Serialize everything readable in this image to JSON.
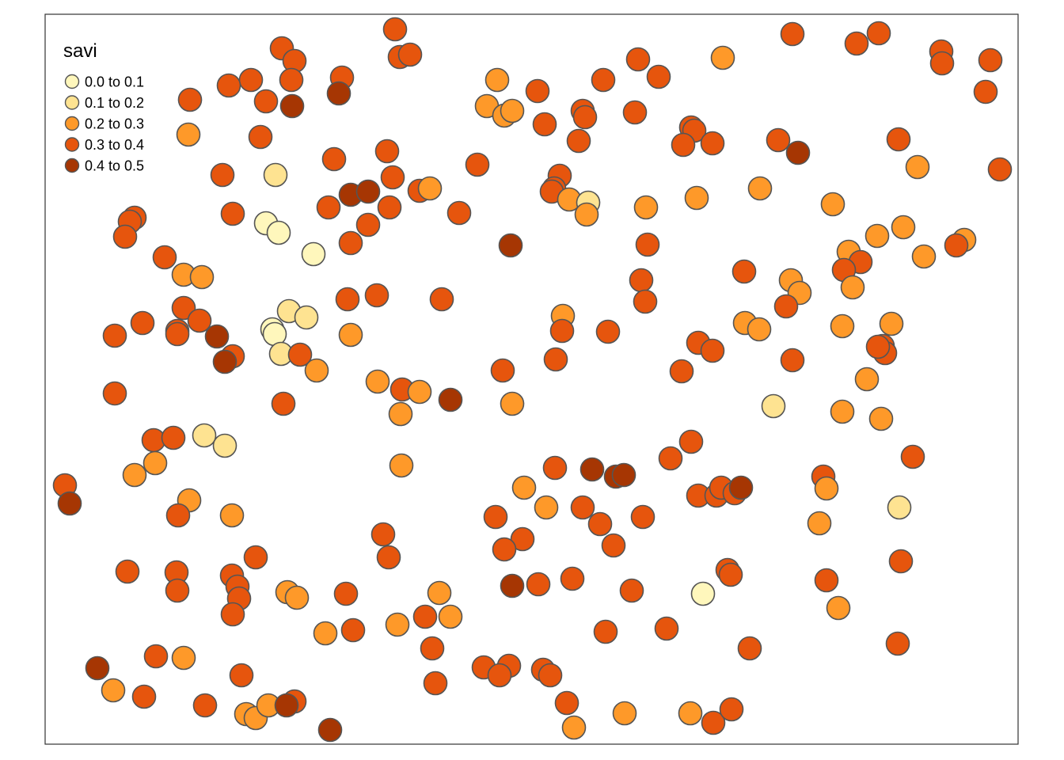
{
  "legend": {
    "title": "savi",
    "classes": [
      {
        "label": "0.0 to 0.1",
        "color": "#FFF7BC"
      },
      {
        "label": "0.1 to 0.2",
        "color": "#FEE391"
      },
      {
        "label": "0.2 to 0.3",
        "color": "#FE9929"
      },
      {
        "label": "0.3 to 0.4",
        "color": "#E6550D"
      },
      {
        "label": "0.4 to 0.5",
        "color": "#A63603"
      }
    ]
  },
  "style": {
    "point_outline": "#555555",
    "frame": "#333333"
  },
  "points": [
    [
      499,
      37,
      3
    ],
    [
      505,
      72,
      3
    ],
    [
      518,
      69,
      3
    ],
    [
      356,
      61,
      3
    ],
    [
      372,
      77,
      3
    ],
    [
      368,
      101,
      3
    ],
    [
      432,
      98,
      3
    ],
    [
      428,
      118,
      4
    ],
    [
      369,
      134,
      4
    ],
    [
      336,
      128,
      3
    ],
    [
      317,
      101,
      3
    ],
    [
      289,
      108,
      3
    ],
    [
      240,
      126,
      3
    ],
    [
      238,
      170,
      2
    ],
    [
      329,
      173,
      3
    ],
    [
      281,
      221,
      3
    ],
    [
      348,
      221,
      1
    ],
    [
      294,
      270,
      3
    ],
    [
      336,
      282,
      0
    ],
    [
      352,
      294,
      0
    ],
    [
      396,
      321,
      0
    ],
    [
      422,
      201,
      3
    ],
    [
      489,
      191,
      3
    ],
    [
      496,
      224,
      3
    ],
    [
      443,
      246,
      4
    ],
    [
      465,
      242,
      4
    ],
    [
      415,
      262,
      3
    ],
    [
      492,
      262,
      3
    ],
    [
      465,
      284,
      3
    ],
    [
      443,
      307,
      3
    ],
    [
      530,
      241,
      3
    ],
    [
      543,
      238,
      2
    ],
    [
      580,
      269,
      3
    ],
    [
      603,
      208,
      3
    ],
    [
      645,
      310,
      4
    ],
    [
      170,
      275,
      3
    ],
    [
      164,
      280,
      3
    ],
    [
      158,
      299,
      3
    ],
    [
      208,
      325,
      3
    ],
    [
      232,
      347,
      2
    ],
    [
      255,
      350,
      2
    ],
    [
      232,
      389,
      3
    ],
    [
      252,
      405,
      3
    ],
    [
      224,
      418,
      3
    ],
    [
      224,
      422,
      3
    ],
    [
      274,
      425,
      4
    ],
    [
      294,
      450,
      3
    ],
    [
      284,
      457,
      4
    ],
    [
      145,
      424,
      3
    ],
    [
      180,
      408,
      3
    ],
    [
      145,
      497,
      3
    ],
    [
      365,
      393,
      1
    ],
    [
      387,
      401,
      1
    ],
    [
      344,
      416,
      0
    ],
    [
      347,
      422,
      0
    ],
    [
      355,
      447,
      1
    ],
    [
      379,
      448,
      3
    ],
    [
      400,
      468,
      2
    ],
    [
      439,
      378,
      3
    ],
    [
      476,
      373,
      3
    ],
    [
      443,
      423,
      2
    ],
    [
      558,
      378,
      3
    ],
    [
      477,
      482,
      2
    ],
    [
      508,
      492,
      3
    ],
    [
      530,
      495,
      2
    ],
    [
      569,
      505,
      4
    ],
    [
      506,
      523,
      2
    ],
    [
      358,
      510,
      3
    ],
    [
      194,
      556,
      3
    ],
    [
      219,
      553,
      3
    ],
    [
      258,
      550,
      1
    ],
    [
      284,
      563,
      1
    ],
    [
      196,
      585,
      2
    ],
    [
      170,
      600,
      2
    ],
    [
      82,
      613,
      3
    ],
    [
      88,
      636,
      4
    ],
    [
      239,
      632,
      2
    ],
    [
      225,
      651,
      3
    ],
    [
      293,
      651,
      2
    ],
    [
      507,
      588,
      2
    ],
    [
      484,
      675,
      3
    ],
    [
      491,
      704,
      3
    ],
    [
      323,
      704,
      3
    ],
    [
      161,
      722,
      3
    ],
    [
      223,
      723,
      3
    ],
    [
      224,
      746,
      3
    ],
    [
      293,
      727,
      3
    ],
    [
      300,
      741,
      3
    ],
    [
      302,
      756,
      3
    ],
    [
      294,
      776,
      3
    ],
    [
      363,
      748,
      2
    ],
    [
      375,
      755,
      2
    ],
    [
      437,
      750,
      3
    ],
    [
      555,
      749,
      2
    ],
    [
      537,
      779,
      3
    ],
    [
      569,
      779,
      2
    ],
    [
      502,
      789,
      2
    ],
    [
      446,
      796,
      3
    ],
    [
      411,
      800,
      2
    ],
    [
      546,
      819,
      3
    ],
    [
      550,
      863,
      3
    ],
    [
      197,
      829,
      3
    ],
    [
      232,
      831,
      2
    ],
    [
      123,
      844,
      4
    ],
    [
      143,
      872,
      2
    ],
    [
      182,
      880,
      3
    ],
    [
      259,
      891,
      3
    ],
    [
      305,
      853,
      3
    ],
    [
      311,
      902,
      2
    ],
    [
      323,
      907,
      2
    ],
    [
      339,
      891,
      2
    ],
    [
      372,
      886,
      3
    ],
    [
      362,
      891,
      4
    ],
    [
      417,
      922,
      4
    ],
    [
      628,
      101,
      2
    ],
    [
      679,
      115,
      3
    ],
    [
      615,
      134,
      2
    ],
    [
      637,
      146,
      2
    ],
    [
      647,
      140,
      2
    ],
    [
      688,
      157,
      3
    ],
    [
      736,
      140,
      3
    ],
    [
      739,
      148,
      3
    ],
    [
      731,
      178,
      3
    ],
    [
      762,
      101,
      3
    ],
    [
      806,
      75,
      3
    ],
    [
      832,
      97,
      3
    ],
    [
      802,
      142,
      3
    ],
    [
      707,
      222,
      3
    ],
    [
      700,
      238,
      3
    ],
    [
      697,
      242,
      3
    ],
    [
      719,
      252,
      2
    ],
    [
      743,
      256,
      1
    ],
    [
      741,
      271,
      2
    ],
    [
      816,
      262,
      2
    ],
    [
      818,
      309,
      3
    ],
    [
      810,
      354,
      3
    ],
    [
      815,
      381,
      3
    ],
    [
      711,
      399,
      2
    ],
    [
      710,
      418,
      3
    ],
    [
      702,
      454,
      3
    ],
    [
      768,
      419,
      3
    ],
    [
      635,
      468,
      3
    ],
    [
      647,
      510,
      2
    ],
    [
      873,
      161,
      3
    ],
    [
      877,
      165,
      3
    ],
    [
      863,
      183,
      3
    ],
    [
      900,
      181,
      3
    ],
    [
      913,
      73,
      2
    ],
    [
      880,
      250,
      2
    ],
    [
      983,
      177,
      3
    ],
    [
      1008,
      193,
      4
    ],
    [
      960,
      238,
      2
    ],
    [
      1001,
      43,
      3
    ],
    [
      1082,
      55,
      3
    ],
    [
      1110,
      42,
      3
    ],
    [
      1189,
      65,
      3
    ],
    [
      1190,
      80,
      3
    ],
    [
      1251,
      76,
      3
    ],
    [
      1245,
      116,
      3
    ],
    [
      1135,
      176,
      3
    ],
    [
      1159,
      211,
      2
    ],
    [
      1263,
      214,
      3
    ],
    [
      1052,
      258,
      2
    ],
    [
      940,
      343,
      3
    ],
    [
      999,
      354,
      2
    ],
    [
      1010,
      370,
      2
    ],
    [
      993,
      387,
      3
    ],
    [
      941,
      408,
      2
    ],
    [
      959,
      416,
      2
    ],
    [
      882,
      433,
      3
    ],
    [
      900,
      443,
      3
    ],
    [
      861,
      469,
      3
    ],
    [
      1001,
      455,
      3
    ],
    [
      1072,
      318,
      2
    ],
    [
      1087,
      331,
      3
    ],
    [
      1066,
      341,
      3
    ],
    [
      1077,
      363,
      2
    ],
    [
      1108,
      298,
      2
    ],
    [
      1141,
      287,
      2
    ],
    [
      1167,
      324,
      2
    ],
    [
      1218,
      303,
      2
    ],
    [
      1208,
      310,
      3
    ],
    [
      1064,
      412,
      2
    ],
    [
      1126,
      409,
      2
    ],
    [
      1115,
      437,
      3
    ],
    [
      1118,
      446,
      3
    ],
    [
      1109,
      438,
      3
    ],
    [
      1095,
      479,
      2
    ],
    [
      977,
      513,
      1
    ],
    [
      1064,
      520,
      2
    ],
    [
      1113,
      529,
      2
    ],
    [
      1153,
      577,
      3
    ],
    [
      1040,
      602,
      3
    ],
    [
      1044,
      617,
      2
    ],
    [
      1136,
      641,
      1
    ],
    [
      1035,
      661,
      2
    ],
    [
      1138,
      709,
      3
    ],
    [
      1044,
      733,
      3
    ],
    [
      1059,
      768,
      2
    ],
    [
      1134,
      813,
      3
    ],
    [
      947,
      819,
      3
    ],
    [
      873,
      558,
      3
    ],
    [
      847,
      579,
      3
    ],
    [
      701,
      591,
      3
    ],
    [
      748,
      593,
      4
    ],
    [
      778,
      602,
      4
    ],
    [
      788,
      600,
      4
    ],
    [
      662,
      616,
      2
    ],
    [
      626,
      653,
      3
    ],
    [
      690,
      641,
      2
    ],
    [
      736,
      641,
      3
    ],
    [
      758,
      662,
      3
    ],
    [
      812,
      653,
      3
    ],
    [
      775,
      689,
      3
    ],
    [
      660,
      681,
      3
    ],
    [
      637,
      694,
      3
    ],
    [
      882,
      626,
      3
    ],
    [
      905,
      626,
      3
    ],
    [
      911,
      616,
      3
    ],
    [
      928,
      623,
      3
    ],
    [
      936,
      616,
      4
    ],
    [
      647,
      740,
      4
    ],
    [
      680,
      738,
      3
    ],
    [
      723,
      731,
      3
    ],
    [
      798,
      746,
      3
    ],
    [
      919,
      720,
      3
    ],
    [
      923,
      726,
      3
    ],
    [
      888,
      750,
      0
    ],
    [
      765,
      798,
      3
    ],
    [
      842,
      794,
      3
    ],
    [
      611,
      843,
      3
    ],
    [
      643,
      841,
      3
    ],
    [
      631,
      853,
      3
    ],
    [
      686,
      846,
      3
    ],
    [
      695,
      853,
      3
    ],
    [
      716,
      888,
      3
    ],
    [
      725,
      919,
      2
    ],
    [
      789,
      901,
      2
    ],
    [
      872,
      901,
      2
    ],
    [
      901,
      913,
      3
    ],
    [
      924,
      896,
      3
    ]
  ]
}
